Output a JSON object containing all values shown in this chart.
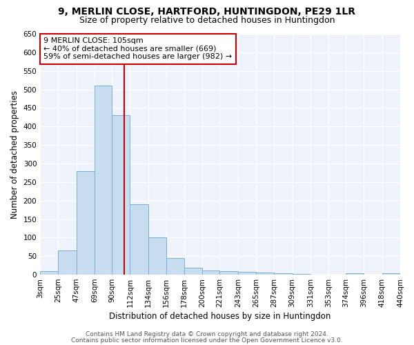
{
  "title": "9, MERLIN CLOSE, HARTFORD, HUNTINGDON, PE29 1LR",
  "subtitle": "Size of property relative to detached houses in Huntingdon",
  "xlabel": "Distribution of detached houses by size in Huntingdon",
  "ylabel": "Number of detached properties",
  "bar_color": "#c8ddf0",
  "bar_edge_color": "#7aaed0",
  "background_color": "#eef2fa",
  "grid_color": "white",
  "bin_edges": [
    3,
    25,
    47,
    69,
    90,
    112,
    134,
    156,
    178,
    200,
    221,
    243,
    265,
    287,
    309,
    331,
    353,
    374,
    396,
    418,
    440
  ],
  "bin_labels": [
    "3sqm",
    "25sqm",
    "47sqm",
    "69sqm",
    "90sqm",
    "112sqm",
    "134sqm",
    "156sqm",
    "178sqm",
    "200sqm",
    "221sqm",
    "243sqm",
    "265sqm",
    "287sqm",
    "309sqm",
    "331sqm",
    "353sqm",
    "374sqm",
    "396sqm",
    "418sqm",
    "440sqm"
  ],
  "bar_heights": [
    10,
    65,
    280,
    510,
    430,
    190,
    100,
    45,
    18,
    12,
    10,
    8,
    5,
    3,
    2,
    0,
    0,
    4,
    0,
    4
  ],
  "ylim": [
    0,
    650
  ],
  "yticks": [
    0,
    50,
    100,
    150,
    200,
    250,
    300,
    350,
    400,
    450,
    500,
    550,
    600,
    650
  ],
  "vline_x": 105,
  "vline_color": "#cc0000",
  "annotation_title": "9 MERLIN CLOSE: 105sqm",
  "annotation_line1": "← 40% of detached houses are smaller (669)",
  "annotation_line2": "59% of semi-detached houses are larger (982) →",
  "annotation_box_color": "white",
  "annotation_box_edge": "#cc0000",
  "footer1": "Contains HM Land Registry data © Crown copyright and database right 2024.",
  "footer2": "Contains public sector information licensed under the Open Government Licence v3.0.",
  "title_fontsize": 10,
  "subtitle_fontsize": 9,
  "label_fontsize": 8.5,
  "tick_fontsize": 7.5,
  "ann_fontsize": 8,
  "footer_fontsize": 6.5
}
